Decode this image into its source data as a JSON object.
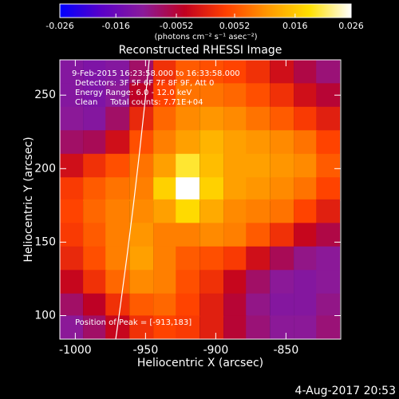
{
  "chart_data": {
    "type": "heatmap",
    "title": "Reconstructed RHESSI Image",
    "colorbar_label": "(photons cm⁻² s⁻¹ asec⁻²)",
    "clim": [
      -0.026,
      0.026
    ],
    "cticks": [
      -0.026,
      -0.016,
      -0.0052,
      0.0052,
      0.016,
      0.026
    ],
    "colormap": [
      "#0000ff",
      "#5a00c8",
      "#8a1a9a",
      "#c00020",
      "#ff4000",
      "#ff9800",
      "#ffe000",
      "#ffffff"
    ],
    "xlabel": "Heliocentric X (arcsec)",
    "ylabel": "Heliocentric Y (arcsec)",
    "xlim": [
      -1011,
      -811
    ],
    "xticks": [
      -1000,
      -950,
      -900,
      -850
    ],
    "ylim": [
      84,
      274
    ],
    "yticks": [
      100,
      150,
      200,
      250
    ],
    "x": [
      -1003,
      -986,
      -970,
      -953,
      -936,
      -920,
      -903,
      -886,
      -870,
      -853,
      -836,
      -820
    ],
    "y": [
      266,
      250,
      234,
      218,
      202,
      186,
      171,
      155,
      139,
      123,
      107,
      92
    ],
    "z": [
      [
        -0.012,
        -0.013,
        -0.012,
        -0.008,
        0.002,
        0.006,
        0.005,
        0.004,
        0.002,
        -0.002,
        -0.006,
        -0.009
      ],
      [
        -0.012,
        -0.013,
        -0.011,
        -0.004,
        0.004,
        0.008,
        0.008,
        0.007,
        0.005,
        0.002,
        -0.002,
        -0.005
      ],
      [
        -0.011,
        -0.012,
        -0.008,
        0.001,
        0.007,
        0.01,
        0.011,
        0.01,
        0.008,
        0.006,
        0.003,
        0.0
      ],
      [
        -0.008,
        -0.007,
        -0.002,
        0.005,
        0.009,
        0.012,
        0.014,
        0.012,
        0.011,
        0.01,
        0.008,
        0.004
      ],
      [
        -0.002,
        0.002,
        0.005,
        0.008,
        0.012,
        0.02,
        0.015,
        0.012,
        0.012,
        0.011,
        0.01,
        0.006
      ],
      [
        0.003,
        0.006,
        0.008,
        0.009,
        0.017,
        0.026,
        0.017,
        0.012,
        0.011,
        0.01,
        0.008,
        0.004
      ],
      [
        0.004,
        0.007,
        0.009,
        0.01,
        0.012,
        0.018,
        0.013,
        0.01,
        0.009,
        0.008,
        0.004,
        0.0
      ],
      [
        0.003,
        0.006,
        0.009,
        0.011,
        0.009,
        0.009,
        0.01,
        0.009,
        0.006,
        0.002,
        -0.003,
        -0.006
      ],
      [
        0.001,
        0.005,
        0.009,
        0.012,
        0.009,
        0.006,
        0.005,
        0.003,
        -0.002,
        -0.007,
        -0.01,
        -0.011
      ],
      [
        -0.003,
        0.002,
        0.007,
        0.01,
        0.009,
        0.005,
        0.002,
        -0.003,
        -0.008,
        -0.011,
        -0.012,
        -0.011
      ],
      [
        -0.008,
        -0.004,
        0.002,
        0.006,
        0.007,
        0.004,
        0.0,
        -0.005,
        -0.01,
        -0.012,
        -0.012,
        -0.01
      ],
      [
        -0.011,
        -0.008,
        -0.003,
        0.002,
        0.004,
        0.003,
        0.0,
        -0.005,
        -0.009,
        -0.011,
        -0.011,
        -0.009
      ]
    ],
    "annotations": [
      "9-Feb-2015 16:23:58.000 to 16:33:58.000",
      "Detectors: 3F 5F 6F 7F 8F 9F, Att 0",
      "Energy Range: 6.0 - 12.0 keV",
      "Clean     Total counts: 7.71E+04"
    ],
    "peak_label": "Position of Peak = [-913,183]",
    "footer": "4-Aug-2017 20:53"
  }
}
